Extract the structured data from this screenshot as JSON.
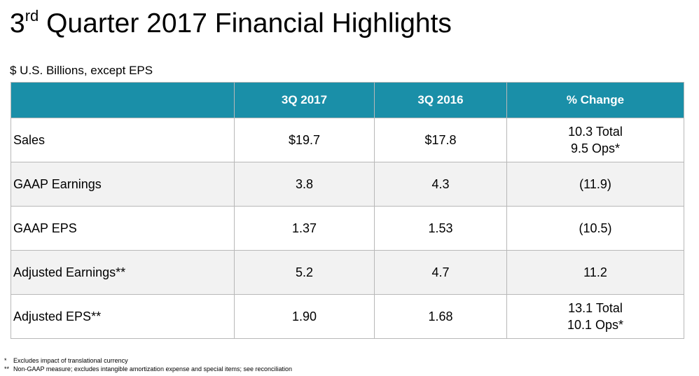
{
  "slide": {
    "title_prefix": "3",
    "title_superscript": "rd",
    "title_rest": " Quarter 2017 Financial Highlights",
    "units_note": "$ U.S. Billions, except EPS"
  },
  "table": {
    "headers": [
      "",
      "3Q 2017",
      "3Q 2016",
      "% Change"
    ],
    "rows": [
      {
        "label": "Sales",
        "q3_2017": "$19.7",
        "q3_2016": "$17.8",
        "change_line1": "10.3 Total",
        "change_line2": "9.5 Ops*"
      },
      {
        "label": "GAAP Earnings",
        "q3_2017": "3.8",
        "q3_2016": "4.3",
        "change_line1": "(11.9)",
        "change_line2": ""
      },
      {
        "label": "GAAP EPS",
        "q3_2017": "1.37",
        "q3_2016": "1.53",
        "change_line1": "(10.5)",
        "change_line2": ""
      },
      {
        "label": "Adjusted Earnings**",
        "q3_2017": "5.2",
        "q3_2016": "4.7",
        "change_line1": "11.2",
        "change_line2": ""
      },
      {
        "label": "Adjusted EPS**",
        "q3_2017": "1.90",
        "q3_2016": "1.68",
        "change_line1": "13.1 Total",
        "change_line2": "10.1 Ops*"
      }
    ]
  },
  "footnotes": [
    {
      "marker": "*",
      "text": "Excludes impact of translational currency"
    },
    {
      "marker": "**",
      "text": "Non-GAAP measure; excludes intangible amortization expense and special items; see reconciliation"
    }
  ],
  "colors": {
    "header_background": "#1a8fa8",
    "header_text": "#ffffff",
    "alt_row": "#f2f2f2",
    "border": "#b8b8b8"
  }
}
